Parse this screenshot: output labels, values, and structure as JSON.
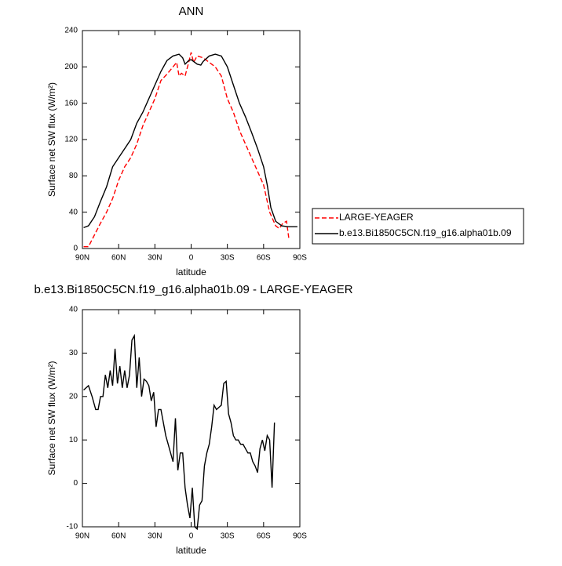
{
  "chart_data": [
    {
      "type": "line",
      "title": "ANN",
      "x_label": "latitude",
      "y_label": "Surface net SW flux (W/m²)",
      "xlim": [
        90,
        -90
      ],
      "ylim": [
        0,
        240
      ],
      "xticks": [
        {
          "value": 90,
          "label": "90N"
        },
        {
          "value": 60,
          "label": "60N"
        },
        {
          "value": 30,
          "label": "30N"
        },
        0,
        {
          "value": -30,
          "label": "30S"
        },
        {
          "value": -60,
          "label": "60S"
        },
        {
          "value": -90,
          "label": "90S"
        }
      ],
      "yticks": [
        0,
        40,
        80,
        120,
        160,
        200,
        240
      ],
      "legend": "right",
      "series": [
        {
          "name": "LARGE-YEAGER",
          "color": "#ff0000",
          "style": "dashed",
          "x": [
            89,
            85,
            80,
            75,
            70,
            65,
            60,
            55,
            50,
            45,
            40,
            35,
            30,
            25,
            20,
            15,
            12,
            10,
            8,
            5,
            2,
            0,
            -2,
            -5,
            -10,
            -15,
            -20,
            -25,
            -30,
            -35,
            -40,
            -45,
            -50,
            -55,
            -60,
            -65,
            -70,
            -73,
            -76,
            -79,
            -81
          ],
          "values": [
            2,
            2,
            15,
            28,
            40,
            55,
            75,
            90,
            100,
            115,
            135,
            150,
            165,
            185,
            192,
            200,
            205,
            190,
            193,
            190,
            205,
            216,
            205,
            212,
            210,
            205,
            200,
            190,
            165,
            150,
            130,
            115,
            100,
            85,
            70,
            40,
            25,
            22,
            28,
            30,
            10
          ]
        },
        {
          "name": "b.e13.Bi1850C5CN.f19_g16.alpha01b.09",
          "color": "#000000",
          "style": "solid",
          "x": [
            89,
            85,
            80,
            75,
            70,
            65,
            60,
            55,
            50,
            45,
            40,
            35,
            30,
            25,
            20,
            15,
            10,
            7,
            5,
            2,
            0,
            -5,
            -8,
            -10,
            -15,
            -20,
            -25,
            -30,
            -35,
            -40,
            -45,
            -50,
            -55,
            -60,
            -63,
            -66,
            -70,
            -75,
            -80,
            -88
          ],
          "values": [
            23,
            25,
            35,
            52,
            68,
            90,
            100,
            110,
            120,
            138,
            150,
            165,
            180,
            195,
            207,
            212,
            214,
            210,
            203,
            207,
            208,
            203,
            202,
            206,
            212,
            214,
            212,
            200,
            180,
            160,
            145,
            128,
            110,
            90,
            70,
            45,
            30,
            25,
            24,
            24
          ]
        }
      ]
    },
    {
      "type": "line",
      "title": "b.e13.Bi1850C5CN.f19_g16.alpha01b.09 - LARGE-YEAGER",
      "x_label": "latitude",
      "y_label": "Surface net SW flux (W/m²)",
      "xlim": [
        90,
        -90
      ],
      "ylim": [
        -10,
        40
      ],
      "xticks": [
        {
          "value": 90,
          "label": "90N"
        },
        {
          "value": 60,
          "label": "60N"
        },
        {
          "value": 30,
          "label": "30N"
        },
        0,
        {
          "value": -30,
          "label": "30S"
        },
        {
          "value": -60,
          "label": "60S"
        },
        {
          "value": -90,
          "label": "90S"
        }
      ],
      "yticks": [
        -10,
        0,
        10,
        20,
        30,
        40
      ],
      "series": [
        {
          "color": "#000000",
          "style": "solid",
          "x": [
            89,
            85,
            82,
            79,
            77,
            75,
            73,
            71,
            69,
            67,
            65,
            63,
            61,
            59,
            57,
            55,
            53,
            51,
            49,
            47,
            45,
            43,
            41,
            39,
            37,
            35,
            33,
            31,
            29,
            27,
            25,
            23,
            21,
            19,
            17,
            15,
            13,
            11,
            9,
            7,
            5,
            3,
            1,
            -1,
            -3,
            -5,
            -7,
            -9,
            -11,
            -13,
            -15,
            -17,
            -19,
            -21,
            -23,
            -25,
            -27,
            -29,
            -31,
            -33,
            -35,
            -37,
            -39,
            -41,
            -43,
            -45,
            -47,
            -49,
            -51,
            -53,
            -55,
            -57,
            -59,
            -61,
            -63,
            -65,
            -67,
            -69
          ],
          "values": [
            21.5,
            22.5,
            20,
            17,
            17,
            20,
            20,
            25,
            22,
            26,
            22.5,
            31,
            23,
            27,
            22,
            26,
            22,
            25,
            33,
            34,
            22,
            29,
            20,
            24,
            23.5,
            22.5,
            19,
            21,
            13,
            17,
            17,
            14,
            11,
            9,
            7,
            5,
            15,
            3,
            7,
            7,
            -1,
            -5,
            -8,
            -1,
            -10,
            -10.5,
            -5,
            -4,
            4,
            7,
            9,
            13,
            18,
            17,
            17.5,
            18,
            23,
            23.5,
            16,
            14,
            11,
            10,
            10,
            9,
            9,
            8,
            7,
            7,
            5,
            4,
            2.5,
            8,
            10,
            7.5,
            11,
            10,
            -1,
            14
          ]
        }
      ]
    }
  ]
}
